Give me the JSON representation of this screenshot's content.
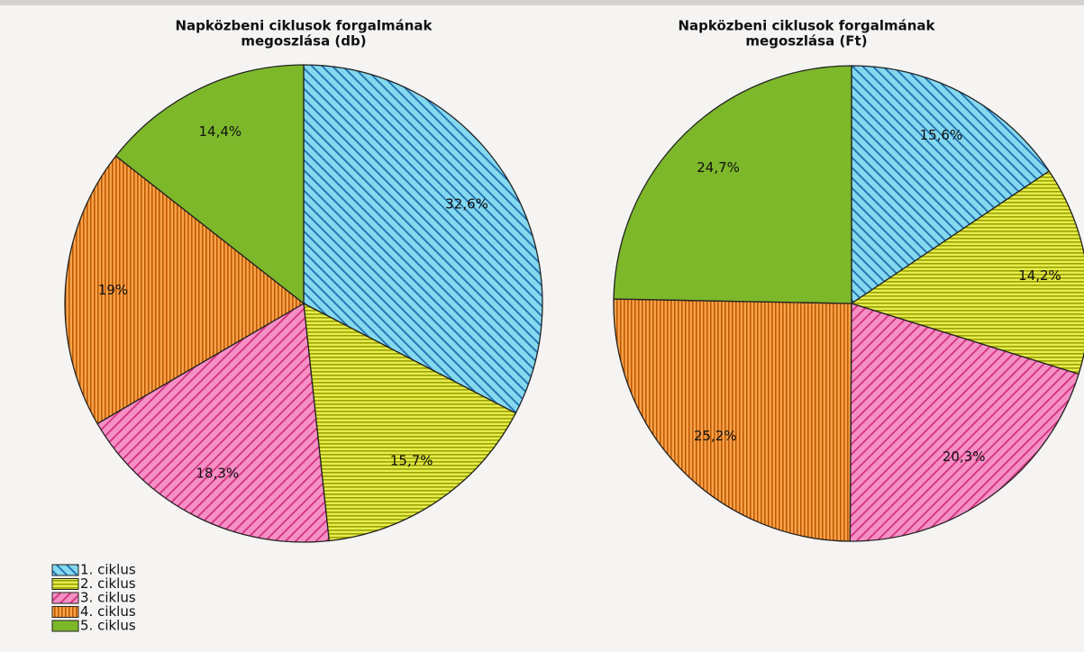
{
  "chart_data": [
    {
      "type": "pie",
      "title": [
        "Napközbeni ciklusok forgalmának",
        "megoszlása (db)"
      ],
      "categories": [
        "1. ciklus",
        "2. ciklus",
        "3. ciklus",
        "4. ciklus",
        "5. ciklus"
      ],
      "values": [
        32.6,
        15.7,
        18.3,
        19,
        14.4
      ],
      "value_labels": [
        "32,6%",
        "15,7%",
        "18,3%",
        "19%",
        "14,4%"
      ],
      "colors": [
        "#84d9ef",
        "#e6ed4e",
        "#f590c6",
        "#f6a34c",
        "#7db82b"
      ],
      "hatch": [
        "backslash",
        "horizontal",
        "slash",
        "vertical",
        "none"
      ],
      "hatch_colors": [
        "#1e6eb0",
        "#9ba200",
        "#d2327c",
        "#c05800",
        "#7db82b"
      ],
      "legend": "bottom-left"
    },
    {
      "type": "pie",
      "title": [
        "Napközbeni ciklusok forgalmának",
        "megoszlása (Ft)"
      ],
      "values": [
        15.6,
        14.2,
        20.3,
        25.2,
        24.7
      ],
      "value_labels": [
        "15,6%",
        "14,2%",
        "20,3%",
        "25,2%",
        "24,7%"
      ],
      "colors": [
        "#84d9ef",
        "#e6ed4e",
        "#f590c6",
        "#f6a34c",
        "#7db82b"
      ],
      "hatch": [
        "backslash",
        "horizontal",
        "slash",
        "vertical",
        "none"
      ],
      "hatch_colors": [
        "#1e6eb0",
        "#9ba200",
        "#d2327c",
        "#c05800",
        "#7db82b"
      ]
    }
  ]
}
